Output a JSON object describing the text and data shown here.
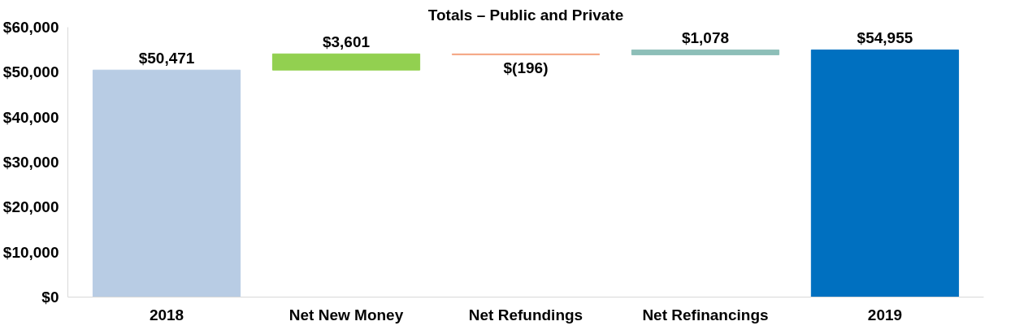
{
  "chart_data": {
    "type": "bar",
    "title": "Totals – Public and Private",
    "categories": [
      "2018",
      "Net New Money",
      "Net Refundings",
      "Net Refinancings",
      "2019"
    ],
    "values": [
      50471,
      3601,
      -196,
      1078,
      54955
    ],
    "base": [
      0,
      50471,
      54072,
      53876,
      0
    ],
    "colors": [
      "#b8cce4",
      "#92d050",
      "#f4a582",
      "#8dbfb8",
      "#0070c0"
    ],
    "value_labels": [
      "$50,471",
      "$3,601",
      "$(196)",
      "$1,078",
      "$54,955"
    ],
    "ylim": [
      0,
      60000
    ],
    "yticks": [
      {
        "value": 0,
        "label": "$0"
      },
      {
        "value": 10000,
        "label": "$10,000"
      },
      {
        "value": 20000,
        "label": "$20,000"
      },
      {
        "value": 30000,
        "label": "$30,000"
      },
      {
        "value": 40000,
        "label": "$40,000"
      },
      {
        "value": 50000,
        "label": "$50,000"
      },
      {
        "value": 60000,
        "label": "$60,000"
      }
    ],
    "grid": false
  }
}
